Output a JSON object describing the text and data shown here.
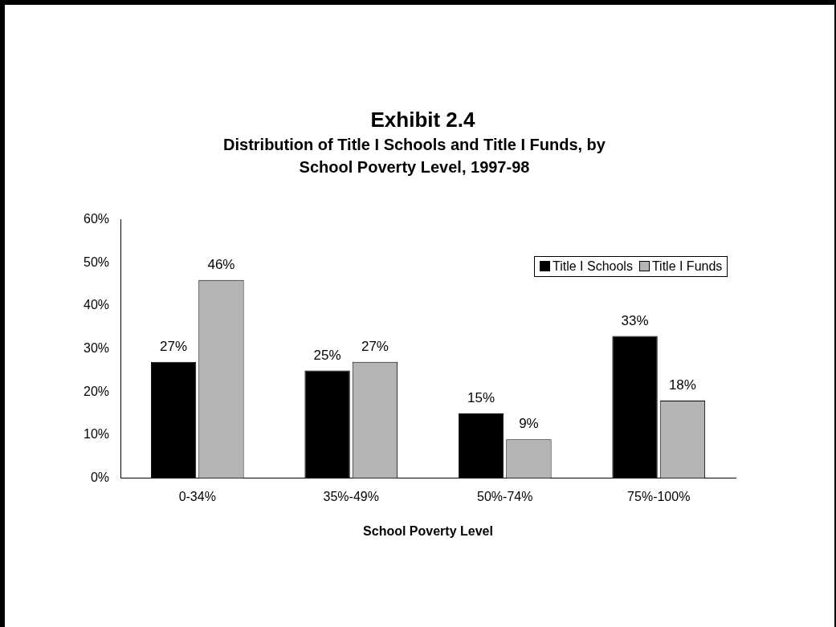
{
  "chart_data": {
    "type": "bar",
    "title": "Exhibit 2.4",
    "subtitle": "Distribution of Title I Schools and Title I Funds, by School Poverty Level, 1997-98",
    "xlabel": "School Poverty Level",
    "categories": [
      "0-34%",
      "35%-49%",
      "50%-74%",
      "75%-100%"
    ],
    "series": [
      {
        "name": "Title I Schools",
        "color": "#000000",
        "values": [
          27,
          25,
          15,
          33
        ],
        "value_labels": [
          "27%",
          "25%",
          "15%",
          "33%"
        ]
      },
      {
        "name": "Title I Funds",
        "color": "#b4b4b4",
        "values": [
          46,
          27,
          9,
          18
        ],
        "value_labels": [
          "46%",
          "27%",
          "9%",
          "18%"
        ]
      }
    ],
    "ylim": [
      0,
      60
    ],
    "yticks": [
      {
        "value": 0,
        "label": "0%"
      },
      {
        "value": 10,
        "label": "10%"
      },
      {
        "value": 20,
        "label": "20%"
      },
      {
        "value": 30,
        "label": "30%"
      },
      {
        "value": 40,
        "label": "40%"
      },
      {
        "value": 50,
        "label": "50%"
      },
      {
        "value": 60,
        "label": "60%"
      }
    ],
    "grid": false,
    "legend": "top right"
  }
}
